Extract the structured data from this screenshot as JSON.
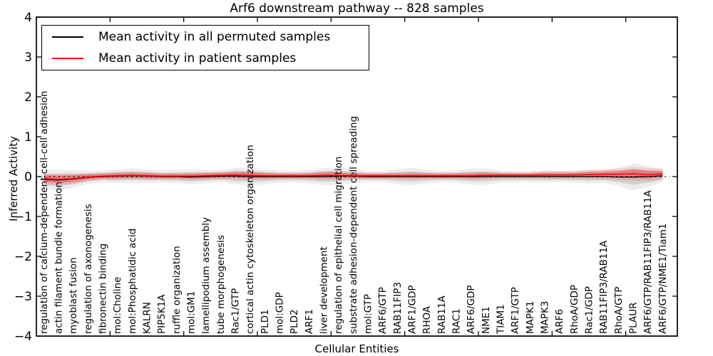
{
  "figure": {
    "title": "Arf6 downstream pathway -- 828 samples",
    "xlabel": "Cellular Entities",
    "ylabel": "Inferred Activity"
  },
  "legend": {
    "items": [
      {
        "label": "Mean activity in all permuted samples",
        "color": "#000000"
      },
      {
        "label": "Mean activity in patient samples",
        "color": "#ff0000"
      }
    ]
  },
  "chart_data": {
    "type": "line",
    "title": "Arf6 downstream pathway -- 828 samples",
    "xlabel": "Cellular Entities",
    "ylabel": "Inferred Activity",
    "ylim": [
      -4,
      4
    ],
    "grid": false,
    "legend_position": "upper left",
    "zero_line_style": "dotted",
    "background": "#ffffff",
    "frame_color": "#000000",
    "yticks": [
      {
        "v": 4,
        "label": "4"
      },
      {
        "v": 3,
        "label": "3"
      },
      {
        "v": 2,
        "label": "2"
      },
      {
        "v": 1,
        "label": "1"
      },
      {
        "v": 0,
        "label": "0"
      },
      {
        "v": -1,
        "label": "−1"
      },
      {
        "v": -2,
        "label": "−2"
      },
      {
        "v": -3,
        "label": "−3"
      },
      {
        "v": -4,
        "label": "−4"
      }
    ],
    "categories": [
      "regulation of calcium-dependent cell-cell adhesion",
      "actin filament bundle formation",
      "myoblast fusion",
      "regulation of axonogenesis",
      "fibronectin binding",
      "mol:Choline",
      "mol:Phosphatidic acid",
      "KALRN",
      "PIP5K1A",
      "ruffle organization",
      "mol:GM1",
      "lamellipodium assembly",
      "tube morphogenesis",
      "Rac1/GTP",
      "cortical actin cytoskeleton organization",
      "PLD1",
      "mol:GDP",
      "PLD2",
      "ARF1",
      "liver development",
      "regulation of epithelial cell migration",
      "substrate adhesion-dependent cell spreading",
      "mol:GTP",
      "ARF6/GTP",
      "RAB11FIP3",
      "ARF1/GDP",
      "RHOA",
      "RAB11A",
      "RAC1",
      "ARF6/GDP",
      "NME1",
      "TIAM1",
      "ARF1/GTP",
      "MAPK1",
      "MAPK3",
      "ARF6",
      "RhoA/GDP",
      "Rac1/GDP",
      "RAB11FIP3/RAB11A",
      "RhoA/GTP",
      "PLAUR",
      "ARF6/GTP/RAB11FIP3/RAB11A",
      "ARF6/GTP/NME1/Tiam1"
    ],
    "series": [
      {
        "name": "Mean activity in all permuted samples",
        "color": "#000000",
        "values": [
          -0.07,
          -0.09,
          -0.06,
          -0.02,
          0.0,
          0.01,
          0.02,
          0.01,
          0.0,
          0.0,
          -0.01,
          0.0,
          0.01,
          0.01,
          0.0,
          0.0,
          0.0,
          0.0,
          0.0,
          0.0,
          0.01,
          0.01,
          0.0,
          0.0,
          0.0,
          0.0,
          0.0,
          0.0,
          0.0,
          0.0,
          0.0,
          0.0,
          0.0,
          0.0,
          0.0,
          0.0,
          0.0,
          0.0,
          0.0,
          -0.01,
          -0.01,
          0.0,
          0.02
        ],
        "band_halfwidth": [
          0.14,
          0.15,
          0.13,
          0.1,
          0.09,
          0.1,
          0.11,
          0.1,
          0.09,
          0.1,
          0.11,
          0.1,
          0.09,
          0.12,
          0.13,
          0.11,
          0.09,
          0.08,
          0.1,
          0.13,
          0.13,
          0.1,
          0.08,
          0.08,
          0.11,
          0.13,
          0.1,
          0.08,
          0.09,
          0.12,
          0.12,
          0.09,
          0.08,
          0.08,
          0.09,
          0.08,
          0.09,
          0.1,
          0.09,
          0.13,
          0.2,
          0.15,
          0.1
        ]
      },
      {
        "name": "Mean activity in patient samples",
        "color": "#ff0000",
        "values": [
          -0.05,
          -0.07,
          -0.05,
          -0.01,
          0.01,
          0.02,
          0.03,
          0.02,
          0.01,
          0.01,
          0.01,
          0.02,
          0.03,
          0.04,
          0.03,
          0.02,
          0.02,
          0.02,
          0.02,
          0.03,
          0.03,
          0.02,
          0.02,
          0.02,
          0.02,
          0.02,
          0.02,
          0.02,
          0.02,
          0.02,
          0.03,
          0.03,
          0.03,
          0.03,
          0.04,
          0.04,
          0.04,
          0.05,
          0.06,
          0.06,
          0.07,
          0.05,
          0.07
        ],
        "band_halfwidth": [
          0.08,
          0.09,
          0.08,
          0.06,
          0.05,
          0.06,
          0.06,
          0.06,
          0.05,
          0.05,
          0.06,
          0.06,
          0.06,
          0.07,
          0.07,
          0.06,
          0.05,
          0.05,
          0.05,
          0.07,
          0.07,
          0.05,
          0.05,
          0.05,
          0.05,
          0.06,
          0.05,
          0.05,
          0.05,
          0.06,
          0.06,
          0.05,
          0.05,
          0.05,
          0.06,
          0.06,
          0.06,
          0.07,
          0.08,
          0.09,
          0.11,
          0.1,
          0.08
        ]
      }
    ]
  }
}
